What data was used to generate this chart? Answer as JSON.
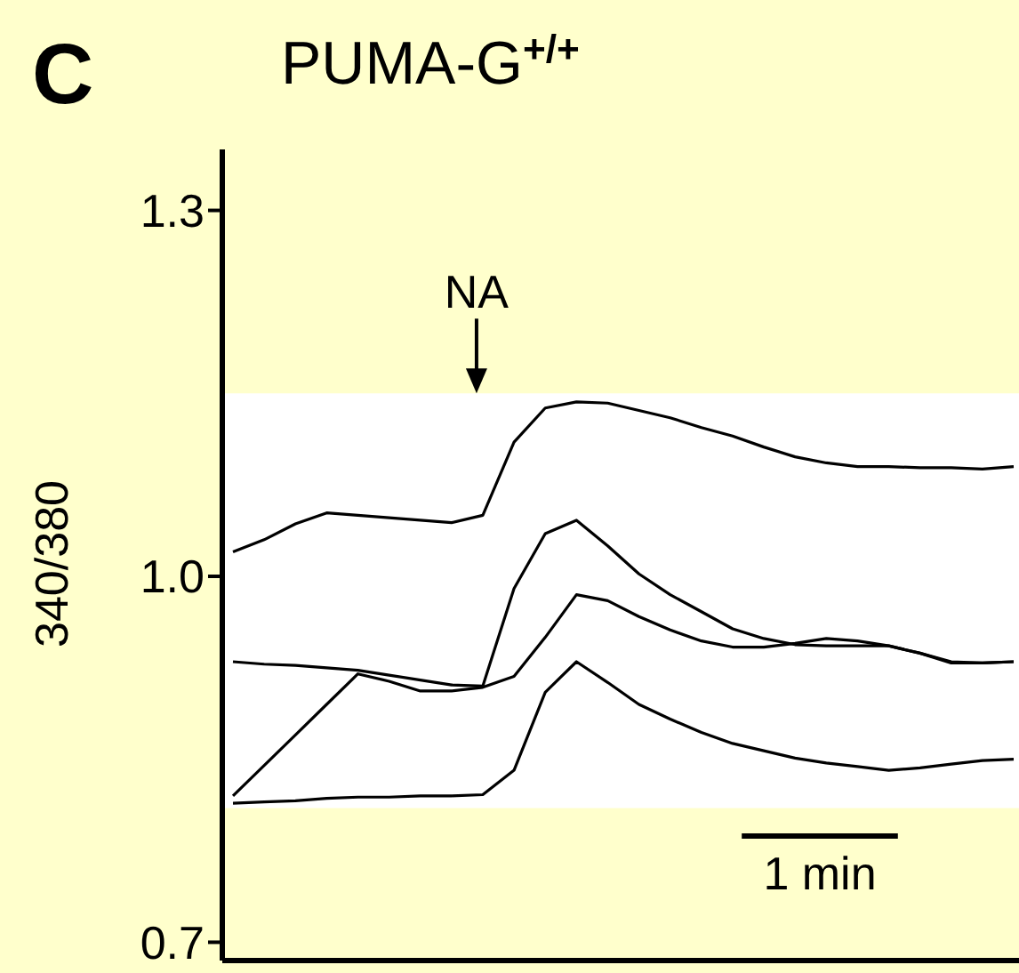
{
  "chart_data": {
    "type": "line",
    "title": "PUMA-G$^{+/+}$",
    "ylabel": "340/380",
    "annotations": [
      "C",
      "NA",
      "1 min"
    ],
    "categories": [
      null,
      null,
      null,
      null,
      null,
      null,
      null,
      null,
      null,
      null,
      null,
      null,
      null,
      null,
      null,
      null,
      null,
      null,
      null,
      null,
      null,
      null,
      null,
      null,
      null,
      null
    ],
    "ylim": [
      0.685,
      1.35
    ],
    "yticks": [
      {
        "value": 0.7,
        "label": "0.7"
      },
      {
        "value": 1,
        "label": "1.0"
      },
      {
        "value": 1.3,
        "label": "1.3"
      }
    ],
    "tick_labels": "y",
    "bands": [
      {
        "axis": "y",
        "from": 0.81,
        "to": 1.15,
        "color": "#ffffff"
      }
    ],
    "series": [
      {
        "color": "#000000",
        "values": [
          1.02,
          1.03,
          1.043,
          1.052,
          1.05,
          1.048,
          1.046,
          1.044,
          1.05,
          1.11,
          1.138,
          1.143,
          1.142,
          1.136,
          1.13,
          1.122,
          1.115,
          1.106,
          1.098,
          1.093,
          1.09,
          1.09,
          1.089,
          1.089,
          1.088,
          1.09
        ]
      },
      {
        "color": "#000000",
        "values": [
          0.93,
          0.928,
          0.927,
          0.925,
          0.923,
          0.919,
          0.915,
          0.911,
          0.91,
          0.99,
          1.035,
          1.046,
          1.025,
          1.002,
          0.985,
          0.971,
          0.957,
          0.949,
          0.944,
          0.943,
          0.943,
          0.943,
          0.937,
          0.93,
          0.929,
          0.93
        ]
      },
      {
        "color": "#000000",
        "values": [
          0.82,
          0.845,
          0.87,
          0.895,
          0.92,
          0.914,
          0.906,
          0.906,
          0.909,
          0.918,
          0.95,
          0.985,
          0.98,
          0.967,
          0.956,
          0.947,
          0.942,
          0.942,
          0.945,
          0.949,
          0.947,
          0.943,
          0.937,
          0.929,
          0.929,
          0.93
        ]
      },
      {
        "color": "#000000",
        "values": [
          0.814,
          0.815,
          0.816,
          0.818,
          0.819,
          0.819,
          0.82,
          0.82,
          0.821,
          0.841,
          0.905,
          0.93,
          0.913,
          0.895,
          0.883,
          0.872,
          0.863,
          0.857,
          0.851,
          0.847,
          0.844,
          0.841,
          0.843,
          0.846,
          0.849,
          0.85
        ]
      }
    ],
    "grid": false,
    "line_style": "solid"
  }
}
